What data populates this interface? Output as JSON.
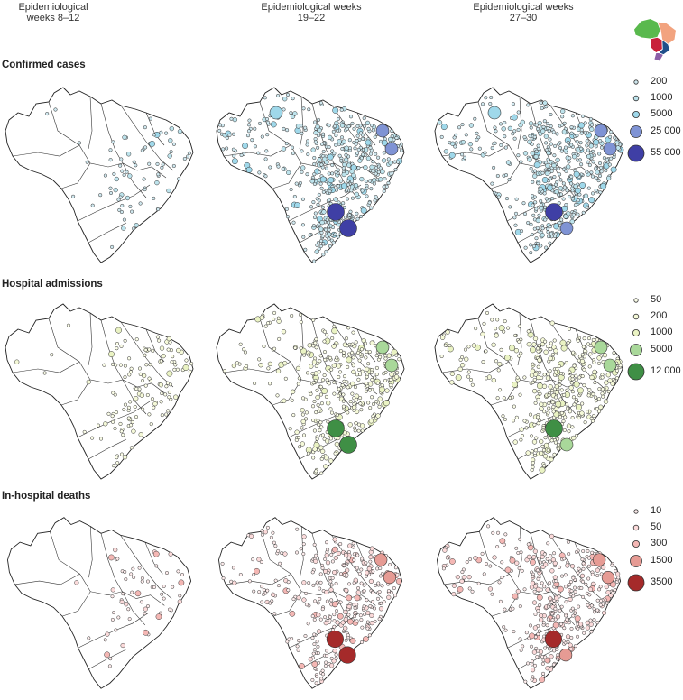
{
  "columns": [
    "Epidemiological weeks 8–12",
    "Epidemiological weeks 19–22",
    "Epidemiological weeks 27–30"
  ],
  "rows": [
    {
      "title": "Confirmed cases",
      "legend": [
        {
          "label": "200",
          "color": "#cfe7ee"
        },
        {
          "label": "1000",
          "color": "#bde3ec"
        },
        {
          "label": "5000",
          "color": "#9fd8ea"
        },
        {
          "label": "25 000",
          "color": "#7f93d4"
        },
        {
          "label": "55 000",
          "color": "#3f3fa5"
        }
      ],
      "density": [
        0.15,
        1.0,
        1.0
      ]
    },
    {
      "title": "Hospital admissions",
      "legend": [
        {
          "label": "50",
          "color": "#fbfde8"
        },
        {
          "label": "200",
          "color": "#f5f9d8"
        },
        {
          "label": "1000",
          "color": "#eaf3c3"
        },
        {
          "label": "5000",
          "color": "#a9d89a"
        },
        {
          "label": "12 000",
          "color": "#3f8f45"
        }
      ],
      "density": [
        0.25,
        0.8,
        0.85
      ]
    },
    {
      "title": "In-hospital deaths",
      "legend": [
        {
          "label": "10",
          "color": "#fdecec"
        },
        {
          "label": "50",
          "color": "#fbdada"
        },
        {
          "label": "300",
          "color": "#f4b7b4"
        },
        {
          "label": "1500",
          "color": "#e69b94"
        },
        {
          "label": "3500",
          "color": "#a52a2a"
        }
      ],
      "density": [
        0.12,
        0.7,
        0.8
      ]
    }
  ],
  "inset_regions": [
    {
      "name": "North",
      "color": "#59b94d"
    },
    {
      "name": "Northeast",
      "color": "#f2a37f"
    },
    {
      "name": "Central-West",
      "color": "#c8203a"
    },
    {
      "name": "Southeast",
      "color": "#1f4f8a"
    },
    {
      "name": "South",
      "color": "#8c5fa8"
    }
  ]
}
